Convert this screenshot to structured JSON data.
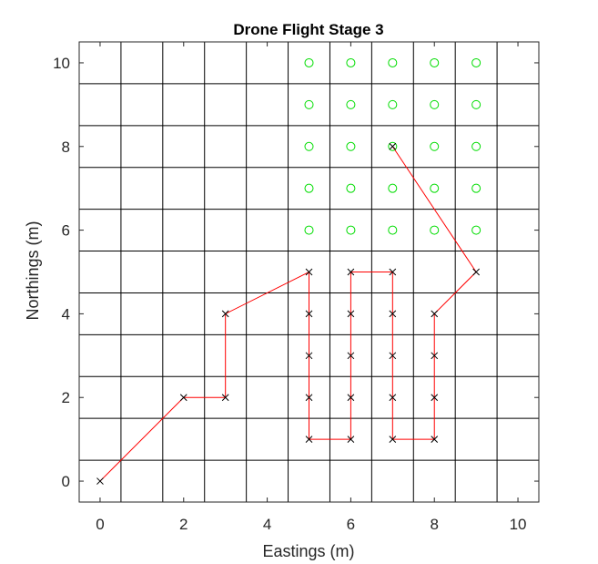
{
  "chart_data": {
    "type": "scatter",
    "title": "Drone Flight Stage 3",
    "xlabel": "Eastings (m)",
    "ylabel": "Northings (m)",
    "xlim": [
      -0.5,
      10.5
    ],
    "ylim": [
      -0.5,
      10.5
    ],
    "xticks": [
      0,
      2,
      4,
      6,
      8,
      10
    ],
    "yticks": [
      0,
      2,
      4,
      6,
      8,
      10
    ],
    "grid_lines": [
      -0.5,
      0.5,
      1.5,
      2.5,
      3.5,
      4.5,
      5.5,
      6.5,
      7.5,
      8.5,
      9.5,
      10.5
    ],
    "colors": {
      "path": "#ff0000",
      "waypoint": "#000000",
      "target": "#00dd00",
      "grid": "#000000",
      "axis": "#262626"
    },
    "series": [
      {
        "type": "line",
        "points": [
          [
            0,
            0
          ],
          [
            2,
            2
          ],
          [
            3,
            2
          ],
          [
            3,
            4
          ],
          [
            5,
            5
          ],
          [
            5,
            4
          ],
          [
            5,
            3
          ],
          [
            5,
            2
          ],
          [
            5,
            1
          ],
          [
            6,
            1
          ],
          [
            6,
            2
          ],
          [
            6,
            3
          ],
          [
            6,
            4
          ],
          [
            6,
            5
          ],
          [
            7,
            5
          ],
          [
            7,
            4
          ],
          [
            7,
            3
          ],
          [
            7,
            2
          ],
          [
            7,
            1
          ],
          [
            8,
            1
          ],
          [
            8,
            2
          ],
          [
            8,
            3
          ],
          [
            8,
            4
          ],
          [
            9,
            5
          ],
          [
            7,
            8
          ]
        ]
      },
      {
        "type": "scatter",
        "marker": "x",
        "points": [
          [
            0,
            0
          ],
          [
            2,
            2
          ],
          [
            3,
            2
          ],
          [
            3,
            4
          ],
          [
            5,
            5
          ],
          [
            5,
            4
          ],
          [
            5,
            3
          ],
          [
            5,
            2
          ],
          [
            5,
            1
          ],
          [
            6,
            1
          ],
          [
            6,
            2
          ],
          [
            6,
            3
          ],
          [
            6,
            4
          ],
          [
            6,
            5
          ],
          [
            7,
            5
          ],
          [
            7,
            4
          ],
          [
            7,
            3
          ],
          [
            7,
            2
          ],
          [
            7,
            1
          ],
          [
            8,
            1
          ],
          [
            8,
            2
          ],
          [
            8,
            3
          ],
          [
            8,
            4
          ],
          [
            9,
            5
          ],
          [
            7,
            8
          ]
        ]
      },
      {
        "type": "scatter",
        "marker": "o",
        "points": [
          [
            5,
            6
          ],
          [
            6,
            6
          ],
          [
            7,
            6
          ],
          [
            8,
            6
          ],
          [
            9,
            6
          ],
          [
            5,
            7
          ],
          [
            6,
            7
          ],
          [
            7,
            7
          ],
          [
            8,
            7
          ],
          [
            9,
            7
          ],
          [
            5,
            8
          ],
          [
            6,
            8
          ],
          [
            7,
            8
          ],
          [
            8,
            8
          ],
          [
            9,
            8
          ],
          [
            5,
            9
          ],
          [
            6,
            9
          ],
          [
            7,
            9
          ],
          [
            8,
            9
          ],
          [
            9,
            9
          ],
          [
            5,
            10
          ],
          [
            6,
            10
          ],
          [
            7,
            10
          ],
          [
            8,
            10
          ],
          [
            9,
            10
          ]
        ]
      }
    ]
  }
}
